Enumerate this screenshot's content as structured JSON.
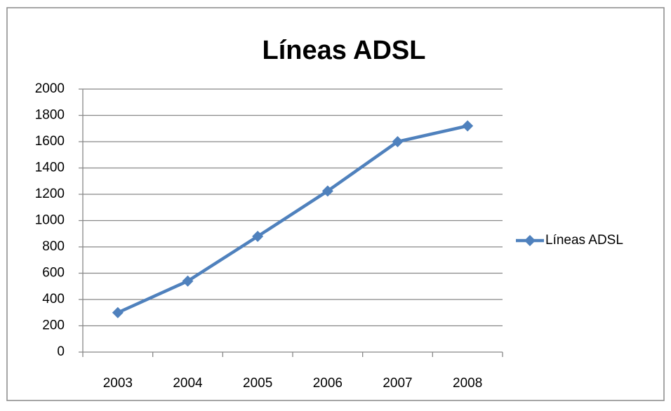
{
  "chart_data": {
    "type": "line",
    "title": "Líneas ADSL",
    "categories": [
      "2003",
      "2004",
      "2005",
      "2006",
      "2007",
      "2008"
    ],
    "series": [
      {
        "name": "Líneas ADSL",
        "color": "#4f81bd",
        "values": [
          300,
          540,
          880,
          1225,
          1600,
          1720
        ]
      }
    ],
    "ylim": [
      0,
      2000
    ],
    "yticks": [
      0,
      200,
      400,
      600,
      800,
      1000,
      1200,
      1400,
      1600,
      1800,
      2000
    ],
    "grid": true,
    "legend": "right"
  }
}
